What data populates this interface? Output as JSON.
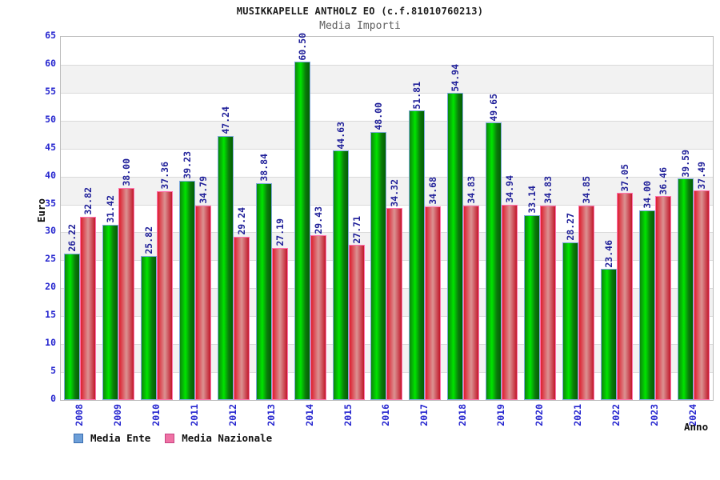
{
  "chart_data": {
    "type": "bar",
    "title": "MUSIKKAPELLE ANTHOLZ EO (c.f.81010760213)",
    "subtitle": "Media Importi",
    "xlabel": "Anno",
    "ylabel": "Euro",
    "ylim": [
      0,
      65
    ],
    "ytick_step": 5,
    "grid": "horizontal-bands-alternating",
    "legend_position": "bottom-left",
    "value_label_format": "2-decimals-rotated-90",
    "categories": [
      "2008",
      "2009",
      "2010",
      "2011",
      "2012",
      "2013",
      "2014",
      "2015",
      "2016",
      "2017",
      "2018",
      "2019",
      "2020",
      "2021",
      "2022",
      "2023",
      "2024"
    ],
    "series": [
      {
        "name": "Media Ente",
        "values": [
          26.22,
          31.42,
          25.82,
          39.23,
          47.24,
          38.84,
          60.5,
          44.63,
          48.0,
          51.81,
          54.94,
          49.65,
          33.14,
          28.27,
          23.46,
          34.0,
          39.59
        ]
      },
      {
        "name": "Media Nazionale",
        "values": [
          32.82,
          38.0,
          37.36,
          34.79,
          29.24,
          27.19,
          29.43,
          27.71,
          34.32,
          34.68,
          34.83,
          34.94,
          34.83,
          34.85,
          37.05,
          36.46,
          37.49
        ]
      }
    ]
  },
  "colors": {
    "ente_bar_dark": "#016001",
    "ente_bar_bright": "#00e400",
    "ente_bar_border": "#7ea9dc",
    "naz_bar_dark": "#c2182a",
    "naz_bar_light": "#db9292",
    "naz_bar_border": "#ff73ae",
    "legend_ente_fill": "#6d9fd8",
    "legend_ente_border": "#3a6db0",
    "legend_naz_fill": "#ef72a4",
    "legend_naz_border": "#c74383",
    "tick_label_blue": "#2626cf",
    "value_label_navy": "#1f1f99",
    "band_gray": "#f2f2f2",
    "gridline": "#dadada",
    "plot_border": "#bcbcbc",
    "subtitle_gray": "#5f5f5f"
  }
}
